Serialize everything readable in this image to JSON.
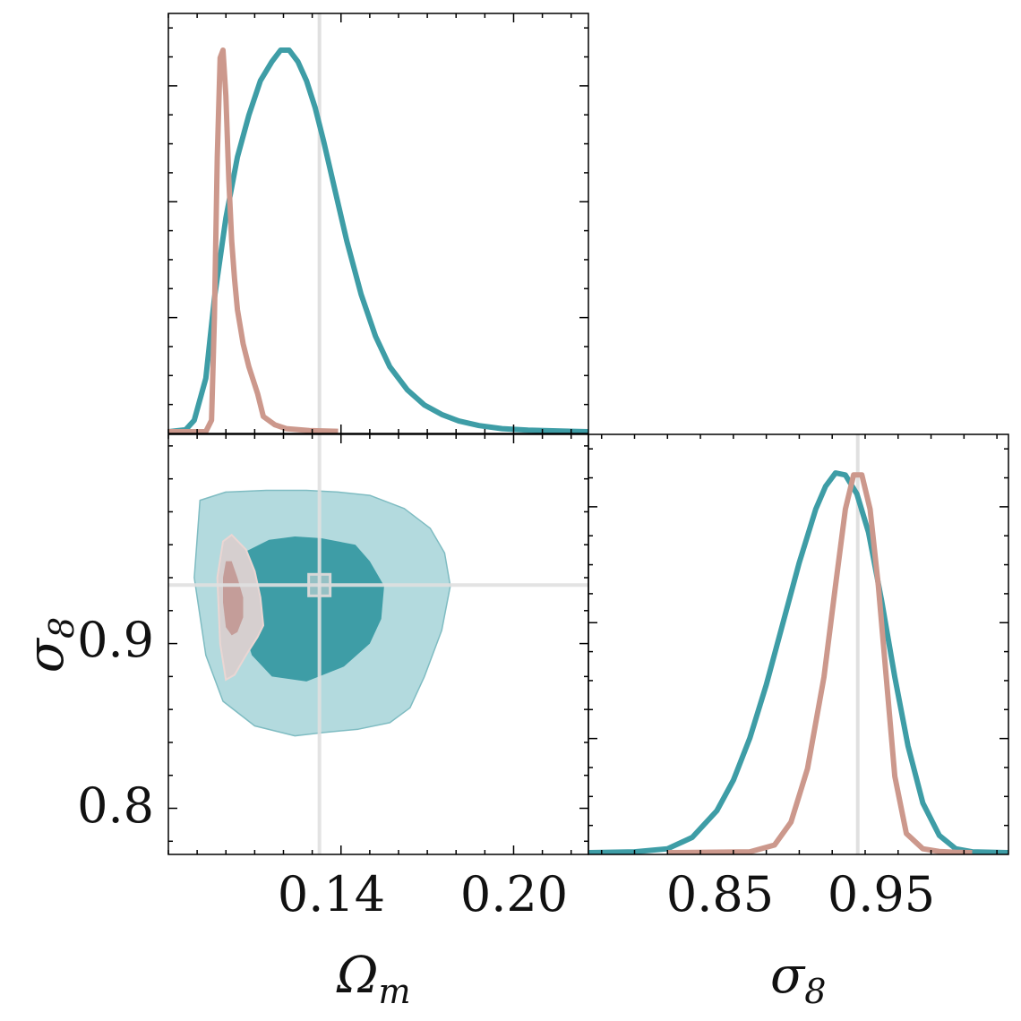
{
  "chart_data": {
    "type": "corner",
    "parameters": [
      {
        "key": "omega_m",
        "label": "Ω",
        "label_sub": "m",
        "range": [
          0.08,
          0.226
        ],
        "ticks": [
          0.14,
          0.2
        ],
        "tick_labels": [
          "0.14",
          "0.20"
        ]
      },
      {
        "key": "sigma_8",
        "label": "σ",
        "label_sub": "8",
        "range": [
          0.772,
          1.027
        ],
        "ticks": [
          0.85,
          0.95
        ],
        "tick_labels": [
          "0.85",
          "0.95"
        ],
        "y_ticks": [
          0.8,
          0.9
        ],
        "y_tick_labels": [
          "0.8",
          "0.9"
        ]
      }
    ],
    "truth": {
      "omega_m": 0.1325,
      "sigma_8": 0.9355
    },
    "series": [
      {
        "color": "#3e9da6",
        "light_color": "#b3dade",
        "omega_m_pdf": {
          "x": [
            0.08,
            0.086,
            0.089,
            0.093,
            0.096,
            0.1,
            0.104,
            0.108,
            0.112,
            0.116,
            0.119,
            0.122,
            0.125,
            0.128,
            0.131,
            0.134,
            0.138,
            0.142,
            0.147,
            0.152,
            0.157,
            0.163,
            0.169,
            0.175,
            0.181,
            0.188,
            0.196,
            0.205,
            0.215,
            0.226
          ],
          "y": [
            0,
            0.005,
            0.03,
            0.14,
            0.35,
            0.56,
            0.72,
            0.83,
            0.92,
            0.97,
            1.0,
            1.0,
            0.97,
            0.92,
            0.85,
            0.76,
            0.63,
            0.5,
            0.36,
            0.25,
            0.17,
            0.11,
            0.07,
            0.045,
            0.028,
            0.016,
            0.008,
            0.004,
            0.002,
            0.0
          ]
        },
        "sigma_8_pdf": {
          "x": [
            0.772,
            0.8,
            0.82,
            0.835,
            0.85,
            0.86,
            0.87,
            0.88,
            0.89,
            0.9,
            0.91,
            0.916,
            0.922,
            0.928,
            0.935,
            0.942,
            0.95,
            0.958,
            0.966,
            0.975,
            0.985,
            0.995,
            1.005,
            1.027
          ],
          "y": [
            0,
            0.002,
            0.01,
            0.04,
            0.11,
            0.19,
            0.3,
            0.44,
            0.6,
            0.76,
            0.9,
            0.96,
            0.995,
            0.99,
            0.94,
            0.84,
            0.66,
            0.46,
            0.28,
            0.13,
            0.045,
            0.01,
            0.002,
            0
          ]
        },
        "contour_95": {
          "omega_m": [
            0.091,
            0.1,
            0.114,
            0.128,
            0.139,
            0.15,
            0.162,
            0.171,
            0.176,
            0.178,
            0.175,
            0.169,
            0.164,
            0.157,
            0.146,
            0.134,
            0.124,
            0.11,
            0.099,
            0.093,
            0.089,
            0.091
          ],
          "sigma_8": [
            0.987,
            0.992,
            0.993,
            0.993,
            0.992,
            0.99,
            0.982,
            0.97,
            0.955,
            0.935,
            0.908,
            0.88,
            0.861,
            0.852,
            0.848,
            0.846,
            0.844,
            0.85,
            0.865,
            0.893,
            0.94,
            0.987
          ]
        },
        "contour_68": {
          "omega_m": [
            0.107,
            0.115,
            0.124,
            0.133,
            0.145,
            0.15,
            0.155,
            0.154,
            0.15,
            0.141,
            0.128,
            0.116,
            0.109,
            0.105,
            0.106,
            0.107
          ],
          "sigma_8": [
            0.956,
            0.963,
            0.965,
            0.964,
            0.96,
            0.95,
            0.935,
            0.915,
            0.9,
            0.886,
            0.877,
            0.88,
            0.893,
            0.915,
            0.94,
            0.956
          ]
        }
      },
      {
        "color": "#cc988c",
        "light_color": "#ead6d3",
        "dark_fill": "#c49d99",
        "mid_fill": "#d6cfcf",
        "omega_m_pdf": {
          "x": [
            0.08,
            0.093,
            0.095,
            0.096,
            0.097,
            0.098,
            0.099,
            0.1,
            0.101,
            0.102,
            0.103,
            0.104,
            0.106,
            0.108,
            0.111,
            0.113,
            0.117,
            0.121,
            0.129,
            0.139
          ],
          "y": [
            0,
            0,
            0.03,
            0.3,
            0.72,
            0.98,
            1.0,
            0.88,
            0.66,
            0.5,
            0.4,
            0.32,
            0.23,
            0.17,
            0.1,
            0.04,
            0.018,
            0.008,
            0.003,
            0.001
          ]
        },
        "sigma_8_pdf": {
          "x": [
            0.82,
            0.87,
            0.885,
            0.895,
            0.905,
            0.915,
            0.922,
            0.928,
            0.933,
            0.938,
            0.943,
            0.948,
            0.953,
            0.958,
            0.965,
            0.975,
            0.985,
            0.995,
            1.005
          ],
          "y": [
            0,
            0.002,
            0.02,
            0.08,
            0.22,
            0.46,
            0.7,
            0.9,
            0.99,
            0.99,
            0.9,
            0.7,
            0.45,
            0.2,
            0.05,
            0.01,
            0.003,
            0.001,
            0
          ]
        },
        "contour_95": {
          "omega_m": [
            0.099,
            0.102,
            0.107,
            0.11,
            0.112,
            0.113,
            0.111,
            0.107,
            0.103,
            0.1,
            0.098,
            0.097,
            0.099
          ],
          "sigma_8": [
            0.962,
            0.966,
            0.957,
            0.944,
            0.928,
            0.911,
            0.904,
            0.893,
            0.881,
            0.878,
            0.9,
            0.94,
            0.962
          ]
        },
        "contour_68": {
          "omega_m": [
            0.1,
            0.102,
            0.104,
            0.106,
            0.106,
            0.104,
            0.102,
            0.1,
            0.099,
            0.099,
            0.1
          ],
          "sigma_8": [
            0.95,
            0.95,
            0.94,
            0.928,
            0.916,
            0.907,
            0.905,
            0.91,
            0.925,
            0.94,
            0.95
          ]
        }
      }
    ]
  }
}
